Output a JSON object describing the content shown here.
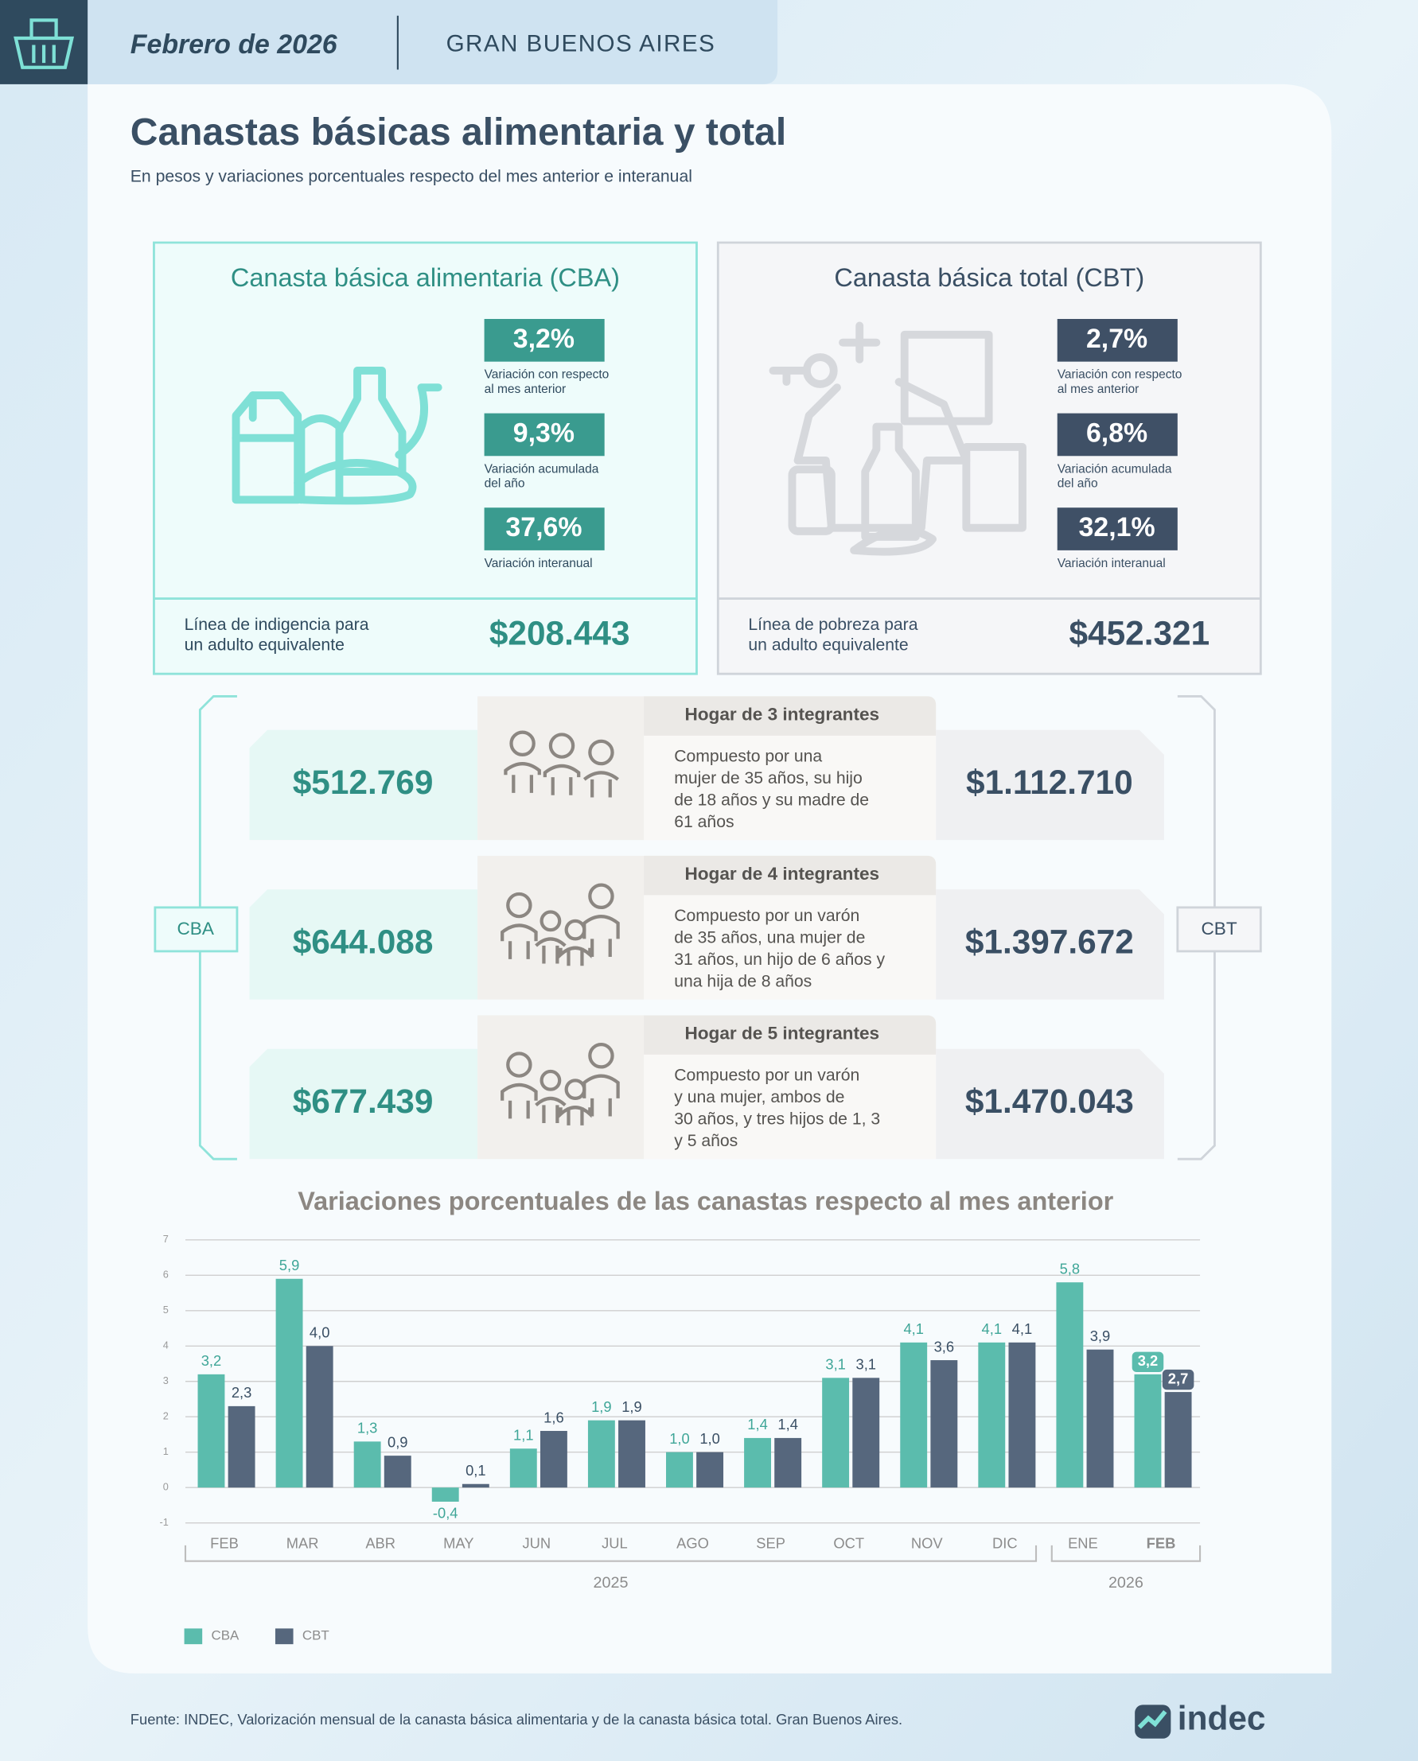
{
  "header": {
    "date": "Febrero de 2026",
    "region": "GRAN BUENOS AIRES"
  },
  "title": "Canastas básicas alimentaria y total",
  "subtitle": "En pesos y variaciones porcentuales respecto del mes anterior e interanual",
  "cards": [
    {
      "title": "Canasta básica alimentaria (CBA)",
      "stats": [
        {
          "value": "3,2%",
          "label": [
            "Variación con respecto",
            "al mes anterior"
          ]
        },
        {
          "value": "9,3%",
          "label": [
            "Variación acumulada",
            "del año"
          ]
        },
        {
          "value": "37,6%",
          "label": [
            "Variación interanual"
          ]
        }
      ],
      "line_label": [
        "Línea de indigencia para",
        "un adulto equivalente"
      ],
      "amount": "$208.443"
    },
    {
      "title": "Canasta básica total (CBT)",
      "stats": [
        {
          "value": "2,7%",
          "label": [
            "Variación con respecto",
            "al mes anterior"
          ]
        },
        {
          "value": "6,8%",
          "label": [
            "Variación acumulada",
            "del año"
          ]
        },
        {
          "value": "32,1%",
          "label": [
            "Variación interanual"
          ]
        }
      ],
      "line_label": [
        "Línea de pobreza para",
        "un adulto equivalente"
      ],
      "amount": "$452.321"
    }
  ],
  "households": {
    "left_label": "CBA",
    "right_label": "CBT",
    "rows": [
      {
        "title": "Hogar de 3 integrantes",
        "description": [
          "Compuesto por una",
          "mujer de 35 años, su hijo",
          "de 18 años y su madre de",
          "61 años"
        ],
        "cba": "$512.769",
        "cbt": "$1.112.710"
      },
      {
        "title": "Hogar de 4 integrantes",
        "description": [
          "Compuesto por un varón",
          "de 35 años, una mujer de",
          "31 años, un hijo de 6 años y",
          "una hija de 8 años"
        ],
        "cba": "$644.088",
        "cbt": "$1.397.672"
      },
      {
        "title": "Hogar de 5 integrantes",
        "description": [
          "Compuesto por un varón",
          "y una mujer, ambos de",
          "30 años, y tres hijos de 1, 3",
          "y 5 años"
        ],
        "cba": "$677.439",
        "cbt": "$1.470.043"
      }
    ]
  },
  "chart_data": {
    "type": "bar",
    "title": "Variaciones porcentuales de las canastas respecto al mes anterior",
    "categories": [
      "FEB",
      "MAR",
      "ABR",
      "MAY",
      "JUN",
      "JUL",
      "AGO",
      "SEP",
      "OCT",
      "NOV",
      "DIC",
      "ENE",
      "FEB"
    ],
    "x_groups": [
      {
        "label": "2025",
        "from": 0,
        "to": 10
      },
      {
        "label": "2026",
        "from": 11,
        "to": 12
      }
    ],
    "series": [
      {
        "name": "CBA",
        "color": "#5bbcad",
        "values": [
          3.2,
          5.9,
          1.3,
          -0.4,
          1.1,
          1.9,
          1.0,
          1.4,
          3.1,
          4.1,
          4.1,
          5.8,
          3.2
        ],
        "value_labels": [
          "3,2",
          "5,9",
          "1,3",
          "-0,4",
          "1,1",
          "1,9",
          "1,0",
          "1,4",
          "3,1",
          "4,1",
          "4,1",
          "5,8",
          "3,2"
        ]
      },
      {
        "name": "CBT",
        "color": "#56677d",
        "values": [
          2.3,
          4.0,
          0.9,
          0.1,
          1.6,
          1.9,
          1.0,
          1.4,
          3.1,
          3.6,
          4.1,
          3.9,
          2.7
        ],
        "value_labels": [
          "2,3",
          "4,0",
          "0,9",
          "0,1",
          "1,6",
          "1,9",
          "1,0",
          "1,4",
          "3,1",
          "3,6",
          "4,1",
          "3,9",
          "2,7"
        ]
      }
    ],
    "ylim": [
      -1,
      7
    ],
    "yticks": [
      -1,
      0,
      1,
      2,
      3,
      4,
      5,
      6,
      7
    ],
    "grid": true
  },
  "footer": {
    "source": "Fuente: INDEC, Valorización mensual de la canasta básica alimentaria y de la canasta básica total. Gran Buenos Aires.",
    "logo": "indec"
  }
}
